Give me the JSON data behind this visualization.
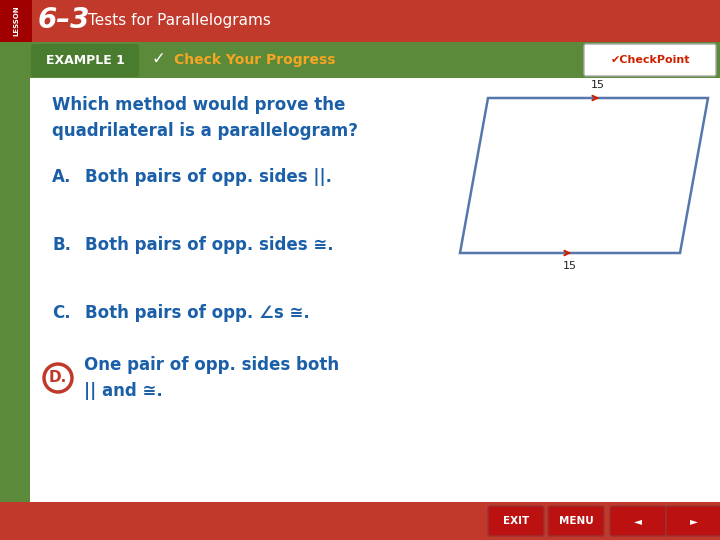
{
  "bg_outer": "#c0392b",
  "bg_main": "#f5f5f5",
  "header_color": "#c0392b",
  "header_dark": "#a00000",
  "lesson_text": "LESSON",
  "title_num": "6–3",
  "title_sub": "Tests for Parallelograms",
  "example_bg": "#5a8a3a",
  "example_badge_bg": "#4a7c2f",
  "example_text": "EXAMPLE 1",
  "check_text": "Check Your Progress",
  "check_color": "#f5a623",
  "checkpoint_text": "CheckPoint",
  "checkpoint_color": "#cc2200",
  "question": "Which method would prove the\nquadrilateral is a parallelogram?",
  "question_color": "#1a5fa8",
  "option_color": "#1a5fa8",
  "options": [
    {
      "letter": "A.",
      "text": "Both pairs of opp. sides ||."
    },
    {
      "letter": "B.",
      "text": "Both pairs of opp. sides ≅."
    },
    {
      "letter": "C.",
      "text": "Both pairs of opp. ∠s ≅."
    },
    {
      "letter": "D.",
      "text": "One pair of opp. sides both\n|| and ≅."
    }
  ],
  "correct_option_idx": 3,
  "correct_circle_color": "#c0392b",
  "para_color": "#5577aa",
  "para_tick_color": "#cc2200",
  "para_label": "15",
  "footer_bg": "#c0392b",
  "sidebar_color": "#5a8a3a",
  "white": "#ffffff"
}
